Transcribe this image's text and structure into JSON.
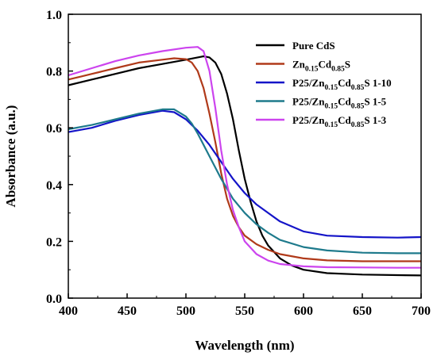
{
  "chart_data": {
    "type": "line",
    "xlabel": "Wavelength (nm)",
    "ylabel": "Absorbance (a.u.)",
    "xlim": [
      400,
      700
    ],
    "ylim": [
      0.0,
      1.0
    ],
    "xticks": [
      400,
      450,
      500,
      550,
      600,
      650,
      700
    ],
    "yticks": [
      0.0,
      0.2,
      0.4,
      0.6,
      0.8,
      1.0
    ],
    "xtick_labels": [
      "400",
      "450",
      "500",
      "550",
      "600",
      "650",
      "700"
    ],
    "ytick_labels": [
      "0.0",
      "0.2",
      "0.4",
      "0.6",
      "0.8",
      "1.0"
    ],
    "grid": false,
    "legend_position": "top-right",
    "series": [
      {
        "name": "Pure CdS",
        "legend": {
          "main": "Pure CdS",
          "parts": []
        },
        "color": "#000000",
        "x": [
          400,
          420,
          440,
          460,
          480,
          500,
          510,
          515,
          520,
          525,
          530,
          535,
          540,
          545,
          550,
          555,
          560,
          565,
          570,
          580,
          590,
          600,
          620,
          650,
          680,
          700
        ],
        "y": [
          0.75,
          0.77,
          0.79,
          0.81,
          0.825,
          0.84,
          0.848,
          0.852,
          0.848,
          0.83,
          0.79,
          0.72,
          0.63,
          0.52,
          0.42,
          0.34,
          0.27,
          0.22,
          0.185,
          0.14,
          0.115,
          0.1,
          0.088,
          0.083,
          0.081,
          0.08
        ]
      },
      {
        "name": "Zn0.15Cd0.85S",
        "legend": {
          "main": "Zn",
          "parts": [
            [
              "0.15",
              "sub"
            ],
            [
              "Cd",
              "norm"
            ],
            [
              "0.85",
              "sub"
            ],
            [
              "S",
              "norm"
            ]
          ]
        },
        "color": "#b03a1a",
        "x": [
          400,
          410,
          420,
          440,
          460,
          480,
          490,
          500,
          505,
          510,
          515,
          520,
          525,
          530,
          535,
          540,
          545,
          550,
          560,
          570,
          580,
          600,
          620,
          650,
          680,
          700
        ],
        "y": [
          0.77,
          0.78,
          0.79,
          0.81,
          0.83,
          0.84,
          0.845,
          0.842,
          0.83,
          0.8,
          0.74,
          0.65,
          0.55,
          0.44,
          0.35,
          0.29,
          0.25,
          0.22,
          0.19,
          0.17,
          0.155,
          0.14,
          0.133,
          0.13,
          0.13,
          0.13
        ]
      },
      {
        "name": "P25/Zn0.15Cd0.85S 1-10",
        "legend": {
          "main": "P25/Zn",
          "parts": [
            [
              "0.15",
              "sub"
            ],
            [
              "Cd",
              "norm"
            ],
            [
              "0.85",
              "sub"
            ],
            [
              "S 1-10",
              "norm"
            ]
          ]
        },
        "color": "#1414c8",
        "x": [
          400,
          420,
          440,
          460,
          480,
          490,
          500,
          510,
          520,
          530,
          540,
          550,
          560,
          570,
          580,
          600,
          620,
          650,
          680,
          700
        ],
        "y": [
          0.585,
          0.6,
          0.625,
          0.645,
          0.66,
          0.655,
          0.63,
          0.59,
          0.54,
          0.48,
          0.42,
          0.37,
          0.33,
          0.3,
          0.27,
          0.235,
          0.22,
          0.215,
          0.213,
          0.215
        ]
      },
      {
        "name": "P25/Zn0.15Cd0.85S 1-5",
        "legend": {
          "main": "P25/Zn",
          "parts": [
            [
              "0.15",
              "sub"
            ],
            [
              "Cd",
              "norm"
            ],
            [
              "0.85",
              "sub"
            ],
            [
              "S 1-5",
              "norm"
            ]
          ]
        },
        "color": "#1e7a8c",
        "x": [
          400,
          420,
          440,
          460,
          480,
          490,
          500,
          505,
          510,
          520,
          530,
          540,
          550,
          560,
          570,
          580,
          600,
          620,
          650,
          680,
          700
        ],
        "y": [
          0.595,
          0.61,
          0.63,
          0.65,
          0.665,
          0.665,
          0.64,
          0.615,
          0.58,
          0.5,
          0.42,
          0.35,
          0.3,
          0.26,
          0.23,
          0.205,
          0.18,
          0.168,
          0.16,
          0.158,
          0.158
        ]
      },
      {
        "name": "P25/Zn0.15Cd0.85S 1-3",
        "legend": {
          "main": "P25/Zn",
          "parts": [
            [
              "0.15",
              "sub"
            ],
            [
              "Cd",
              "norm"
            ],
            [
              "0.85",
              "sub"
            ],
            [
              "S 1-3",
              "norm"
            ]
          ]
        },
        "color": "#cc44ee",
        "x": [
          400,
          420,
          440,
          460,
          480,
          500,
          510,
          515,
          520,
          525,
          530,
          535,
          540,
          545,
          550,
          560,
          570,
          580,
          600,
          620,
          650,
          680,
          700
        ],
        "y": [
          0.785,
          0.81,
          0.835,
          0.855,
          0.87,
          0.882,
          0.885,
          0.87,
          0.8,
          0.67,
          0.52,
          0.4,
          0.31,
          0.25,
          0.2,
          0.155,
          0.132,
          0.12,
          0.112,
          0.109,
          0.108,
          0.107,
          0.107
        ]
      }
    ]
  }
}
